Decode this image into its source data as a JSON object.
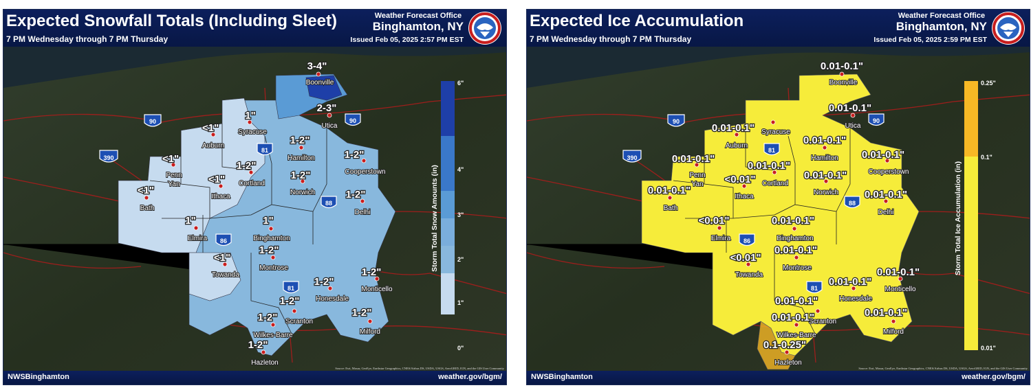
{
  "snow_panel": {
    "title": "Expected Snowfall Totals (Including Sleet)",
    "subtitle": "7 PM Wednesday through 7 PM Thursday",
    "office_label": "Weather Forecast Office",
    "office_city": "Binghamton, NY",
    "issued": "Issued Feb 05, 2025 2:57 PM EST",
    "legend_title": "Storm Total Snow Amounts (in)",
    "legend_ticks": [
      "6\"",
      "4\"",
      "3\"",
      "2\"",
      "1\"",
      "0\""
    ],
    "footer_handle": "NWSBinghamton",
    "footer_site": "weather.gov/bgm/",
    "credit": "Source: Esri, Maxar, GeoEye, Earthstar Geographics, CNES/Airbus DS, USDA, USGS, AeroGRID, IGN, and the GIS User Community",
    "amounts": {
      "boonville": "3-4\"",
      "utica": "2-3\"",
      "syracuse": "1\"",
      "auburn": "<1\"",
      "hamilton": "1-2\"",
      "cooperstown": "1-2\"",
      "penn_yan": "<1\"",
      "cortland": "1-2\"",
      "norwich": "1-2\"",
      "ithaca": "<1\"",
      "bath": "<1\"",
      "delhi": "1-2\"",
      "elmira": "1\"",
      "binghamton": "1\"",
      "montrose": "1-2\"",
      "towanda": "<1\"",
      "monticello": "1-2\"",
      "honesdale": "1-2\"",
      "scranton": "1-2\"",
      "milford": "1-2\"",
      "wilkes_barre": "1-2\"",
      "hazleton": "1-2\""
    }
  },
  "ice_panel": {
    "title": "Expected Ice Accumulation",
    "subtitle": "7 PM Wednesday through 7 PM Thursday",
    "office_label": "Weather Forecast Office",
    "office_city": "Binghamton, NY",
    "issued": "Issued Feb 05, 2025 2:59 PM EST",
    "legend_title": "Storm Total Ice Accumulation (in)",
    "legend_ticks": [
      "0.25\"",
      "0.1\"",
      "0.01\""
    ],
    "footer_handle": "NWSBinghamton",
    "footer_site": "weather.gov/bgm/",
    "credit": "Source: Esri, Maxar, GeoEye, Earthstar Geographics, CNES/Airbus DS, USDA, USGS, AeroGRID, IGN, and the GIS User Community",
    "amounts": {
      "boonville": "0.01-0.1\"",
      "utica": "0.01-0.1\"",
      "syracuse": "0.01-0.1\"",
      "hamilton": "0.01-0.1\"",
      "cooperstown": "0.01-0.1\"",
      "penn_yan": "0.01-0.1\"",
      "cortland": "0.01-0.1\"",
      "norwich": "0.01-0.1\"",
      "ithaca": "<0.01\"",
      "bath": "0.01-0.1\"",
      "delhi": "0.01-0.1\"",
      "elmira": "<0.01\"",
      "binghamton": "0.01-0.1\"",
      "montrose": "0.01-0.1\"",
      "towanda": "<0.01\"",
      "monticello": "0.01-0.1\"",
      "honesdale": "0.01-0.1\"",
      "scranton": "0.01-0.1\"",
      "milford": "0.01-0.1\"",
      "wilkes_barre": "0.01-0.1\"",
      "hazleton": "0.1-0.25\""
    }
  },
  "towns": {
    "boonville": "Boonville",
    "utica": "Utica",
    "syracuse": "Syracuse",
    "auburn": "Auburn",
    "hamilton": "Hamilton",
    "cooperstown": "Cooperstown",
    "penn": "Penn",
    "yan": "Yan",
    "cortland": "Cortland",
    "norwich": "Norwich",
    "ithaca": "Ithaca",
    "bath": "Bath",
    "delhi": "Delhi",
    "elmira": "Elmira",
    "binghamton": "Binghamton",
    "montrose": "Montrose",
    "towanda": "Towanda",
    "monticello": "Monticello",
    "honesdale": "Honesdale",
    "scranton": "Scranton",
    "milford": "Milford",
    "wilkes_barre": "Wilkes-Barre",
    "hazleton": "Hazleton"
  },
  "interstates": [
    "90",
    "390",
    "81",
    "88",
    "86"
  ],
  "colors": {
    "header_bg": "#0c1f5c",
    "snow_lt1": "#c6dbef",
    "snow_1_2": "#88b8dd",
    "snow_2_3": "#5a9bd5",
    "snow_3_4": "#3a78c9",
    "snow_4_6": "#1e3fa8",
    "ice_01_1": "#f6ec3a",
    "ice_1_25": "#f7b825",
    "roads": "#c81e1e",
    "terrain": "#2b3526"
  }
}
